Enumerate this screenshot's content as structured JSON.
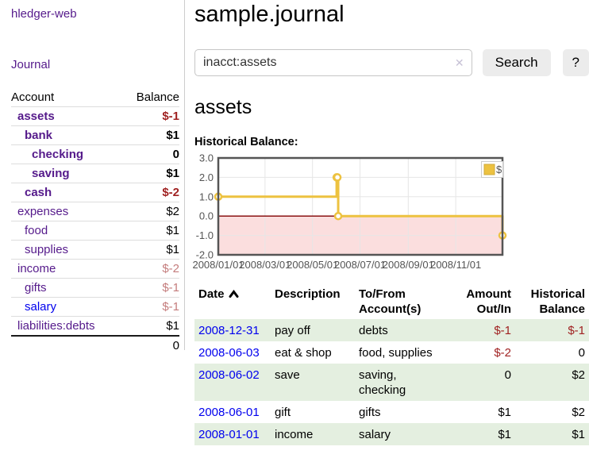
{
  "colors": {
    "link_purple": "#551a8b",
    "link_blue": "#0000ee",
    "negative_red": "#a02222",
    "muted_negative": "#c47c7c",
    "stripe_green": "#e4efe0",
    "button_bg": "#ececec"
  },
  "sidebar": {
    "app_title": "hledger-web",
    "nav_journal_label": "Journal",
    "accounts_table": {
      "headers": [
        "Account",
        "Balance"
      ],
      "rows": [
        {
          "account": "assets",
          "indent": 0,
          "bold": true,
          "balance": "$-1",
          "balance_style": "negative"
        },
        {
          "account": "bank",
          "indent": 1,
          "bold": true,
          "balance": "$1",
          "balance_style": "normal"
        },
        {
          "account": "checking",
          "indent": 2,
          "bold": true,
          "balance": "0",
          "balance_style": "normal"
        },
        {
          "account": "saving",
          "indent": 2,
          "bold": true,
          "balance": "$1",
          "balance_style": "normal"
        },
        {
          "account": "cash",
          "indent": 1,
          "bold": true,
          "balance": "$-2",
          "balance_style": "negative"
        },
        {
          "account": "expenses",
          "indent": 0,
          "bold": false,
          "balance": "$2",
          "balance_style": "normal"
        },
        {
          "account": "food",
          "indent": 1,
          "bold": false,
          "balance": "$1",
          "balance_style": "normal"
        },
        {
          "account": "supplies",
          "indent": 1,
          "bold": false,
          "balance": "$1",
          "balance_style": "normal"
        },
        {
          "account": "income",
          "indent": 0,
          "bold": false,
          "balance": "$-2",
          "balance_style": "muted"
        },
        {
          "account": "gifts",
          "indent": 1,
          "bold": false,
          "balance": "$-1",
          "balance_style": "muted"
        },
        {
          "account": "salary",
          "indent": 1,
          "bold": false,
          "balance": "$-1",
          "balance_style": "muted",
          "link_color": "blue"
        },
        {
          "account": "liabilities:debts",
          "indent": 0,
          "bold": false,
          "balance": "$1",
          "balance_style": "normal"
        }
      ],
      "total": "0"
    }
  },
  "header": {
    "title": "sample.journal"
  },
  "search": {
    "query": "inacct:assets",
    "clear_icon": "✕",
    "button_label": "Search",
    "help_label": "?"
  },
  "register": {
    "account_heading": "assets",
    "chart_title": "Historical Balance:"
  },
  "chart_data": {
    "type": "line",
    "title": "Historical Balance",
    "xlabel": "",
    "ylabel": "",
    "steps": true,
    "grid": true,
    "legend": {
      "label": "$",
      "position": "top-right"
    },
    "series": [
      {
        "name": "$",
        "color": "#edc240",
        "points": [
          {
            "date": "2008-01-01",
            "value": 1
          },
          {
            "date": "2008-06-01",
            "value": 2
          },
          {
            "date": "2008-06-02",
            "value": 2
          },
          {
            "date": "2008-06-03",
            "value": 0
          },
          {
            "date": "2008-12-31",
            "value": -1
          }
        ]
      }
    ],
    "x_range": [
      "2008-01-01",
      "2008-12-31"
    ],
    "x_ticks": [
      "2008/01/01",
      "2008/03/01",
      "2008/05/01",
      "2008/07/01",
      "2008/09/01",
      "2008/11/01"
    ],
    "ylim": [
      -2,
      3
    ],
    "y_ticks": [
      3.0,
      2.0,
      1.0,
      0.0,
      -1.0,
      -2.0
    ],
    "negative_region_fill": "#fbdede",
    "zero_line_color": "#800000",
    "grid_color": "#e6e6e6",
    "border_color": "#555555"
  },
  "transactions_table": {
    "headers": [
      "Date",
      "Description",
      "To/From Account(s)",
      "Amount Out/In",
      "Historical Balance"
    ],
    "sort_icon": "chevron-up",
    "rows": [
      {
        "date": "2008-12-31",
        "description": "pay off",
        "accounts": "debts",
        "amount": "$-1",
        "balance": "$-1"
      },
      {
        "date": "2008-06-03",
        "description": "eat & shop",
        "accounts": "food, supplies",
        "amount": "$-2",
        "balance": "0"
      },
      {
        "date": "2008-06-02",
        "description": "save",
        "accounts": "saving, checking",
        "amount": "0",
        "balance": "$2"
      },
      {
        "date": "2008-06-01",
        "description": "gift",
        "accounts": "gifts",
        "amount": "$1",
        "balance": "$2"
      },
      {
        "date": "2008-01-01",
        "description": "income",
        "accounts": "salary",
        "amount": "$1",
        "balance": "$1"
      }
    ]
  }
}
